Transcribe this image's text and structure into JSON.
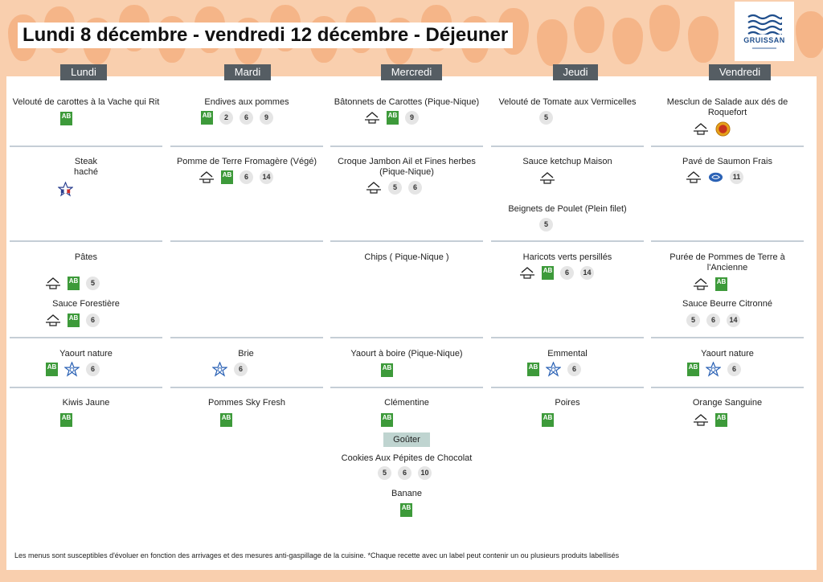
{
  "title": "Lundi 8 décembre - vendredi 12 décembre  - Déjeuner",
  "logo": {
    "name": "GRUISSAN"
  },
  "days": [
    "Lundi",
    "Mardi",
    "Mercredi",
    "Jeudi",
    "Vendredi"
  ],
  "colors": {
    "background": "#f9cfae",
    "header_bg": "#555d63",
    "bio_green": "#3d9a3a",
    "gouter_bg": "#bfd4d0"
  },
  "lundi": {
    "entree": "Velouté de carottes à la Vache qui Rit",
    "plat": "Steak\nhaché",
    "accomp": "Pâtes",
    "accomp_num": "5",
    "sauce": "Sauce Forestière",
    "sauce_num": "6",
    "laitier": "Yaourt nature",
    "laitier_num": "6",
    "dessert": "Kiwis Jaune"
  },
  "mardi": {
    "entree": "Endives aux pommes",
    "entree_nums": [
      "2",
      "6",
      "9"
    ],
    "plat": "Pomme de Terre Fromagère (Végé)",
    "plat_nums": [
      "6",
      "14"
    ],
    "laitier": "Brie",
    "laitier_num": "6",
    "dessert": "Pommes Sky Fresh"
  },
  "mercredi": {
    "entree": "Bâtonnets de Carottes (Pique-Nique)",
    "entree_num": "9",
    "plat": "Croque Jambon Ail et Fines herbes (Pique-Nique)",
    "plat_nums": [
      "5",
      "6"
    ],
    "accomp": "Chips ( Pique-Nique )",
    "laitier": "Yaourt à boire (Pique-Nique)",
    "dessert": "Clémentine",
    "gouter_label": "Goûter",
    "gouter1": "Cookies Aux Pépites de Chocolat",
    "gouter1_nums": [
      "5",
      "6",
      "10"
    ],
    "gouter2": "Banane"
  },
  "jeudi": {
    "entree": "Velouté de Tomate aux Vermicelles",
    "entree_num": "5",
    "sauce": "Sauce ketchup Maison",
    "plat": "Beignets de Poulet (Plein filet)",
    "plat_num": "5",
    "accomp": "Haricots verts persillés",
    "accomp_nums": [
      "6",
      "14"
    ],
    "laitier": "Emmental",
    "laitier_num": "6",
    "dessert": "Poires"
  },
  "vendredi": {
    "entree": "Mesclun de Salade aux dés de Roquefort",
    "plat": "Pavé de Saumon Frais",
    "plat_num": "11",
    "accomp": "Purée de Pommes de Terre à l'Ancienne",
    "sauce": "Sauce Beurre Citronné",
    "sauce_nums": [
      "5",
      "6",
      "14"
    ],
    "laitier": "Yaourt nature",
    "laitier_num": "6",
    "dessert": "Orange Sanguine"
  },
  "icons": {
    "bio": "AB",
    "house": "fait-maison-icon",
    "star": "label-rouge-star-icon",
    "fish": "msc-fish-icon",
    "medal": "aop-medal-icon",
    "flag": "viande-francaise-icon"
  },
  "footer": "Les menus sont susceptibles d'évoluer en fonction des arrivages et des mesures anti-gaspillage de la cuisine. *Chaque recette avec un label peut contenir un ou plusieurs produits labellisés"
}
